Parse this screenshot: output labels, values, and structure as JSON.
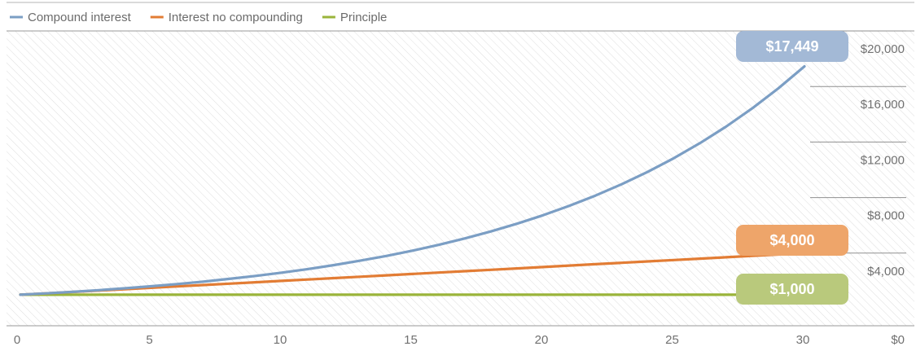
{
  "chart_data": {
    "type": "line",
    "title": "",
    "xlabel": "",
    "ylabel": "",
    "xlim": [
      0,
      30
    ],
    "ylim": [
      0,
      20000
    ],
    "x_ticks": [
      "0",
      "5",
      "10",
      "15",
      "20",
      "25",
      "30"
    ],
    "y_ticks": [
      "$0",
      "$4,000",
      "$8,000",
      "$12,000",
      "$16,000",
      "$20,000"
    ],
    "y_tick_values": [
      0,
      4000,
      8000,
      12000,
      16000,
      20000
    ],
    "grid": "horizontal, right side",
    "legend": "top-left",
    "background": "diagonal hatch",
    "series": [
      {
        "name": "Compound interest",
        "color": "#7b9ec4",
        "x": [
          0,
          1,
          2,
          3,
          4,
          5,
          6,
          7,
          8,
          9,
          10,
          11,
          12,
          13,
          14,
          15,
          16,
          17,
          18,
          19,
          20,
          21,
          22,
          23,
          24,
          25,
          26,
          27,
          28,
          29,
          30
        ],
        "values": [
          1000,
          1100,
          1210,
          1331,
          1464,
          1611,
          1772,
          1949,
          2144,
          2358,
          2594,
          2853,
          3138,
          3452,
          3797,
          4177,
          4595,
          5054,
          5560,
          6116,
          6727,
          7400,
          8140,
          8954,
          9850,
          10835,
          11918,
          13110,
          14421,
          15863,
          17449
        ]
      },
      {
        "name": "Interest no compounding",
        "color": "#e27c34",
        "x": [
          0,
          1,
          2,
          3,
          4,
          5,
          6,
          7,
          8,
          9,
          10,
          11,
          12,
          13,
          14,
          15,
          16,
          17,
          18,
          19,
          20,
          21,
          22,
          23,
          24,
          25,
          26,
          27,
          28,
          29,
          30
        ],
        "values": [
          1000,
          1100,
          1200,
          1300,
          1400,
          1500,
          1600,
          1700,
          1800,
          1900,
          2000,
          2100,
          2200,
          2300,
          2400,
          2500,
          2600,
          2700,
          2800,
          2900,
          3000,
          3100,
          3200,
          3300,
          3400,
          3500,
          3600,
          3700,
          3800,
          3900,
          4000
        ]
      },
      {
        "name": "Principle",
        "color": "#9ab43a",
        "x": [
          0,
          30
        ],
        "values": [
          1000,
          1000
        ]
      }
    ],
    "callouts": [
      {
        "label": "$17,449",
        "value": 17449,
        "color": "#a3b9d6",
        "series": "Compound interest"
      },
      {
        "label": "$4,000",
        "value": 4000,
        "color": "#eea56a",
        "series": "Interest no compounding"
      },
      {
        "label": "$1,000",
        "value": 1000,
        "color": "#b9c97c",
        "series": "Principle"
      }
    ]
  }
}
